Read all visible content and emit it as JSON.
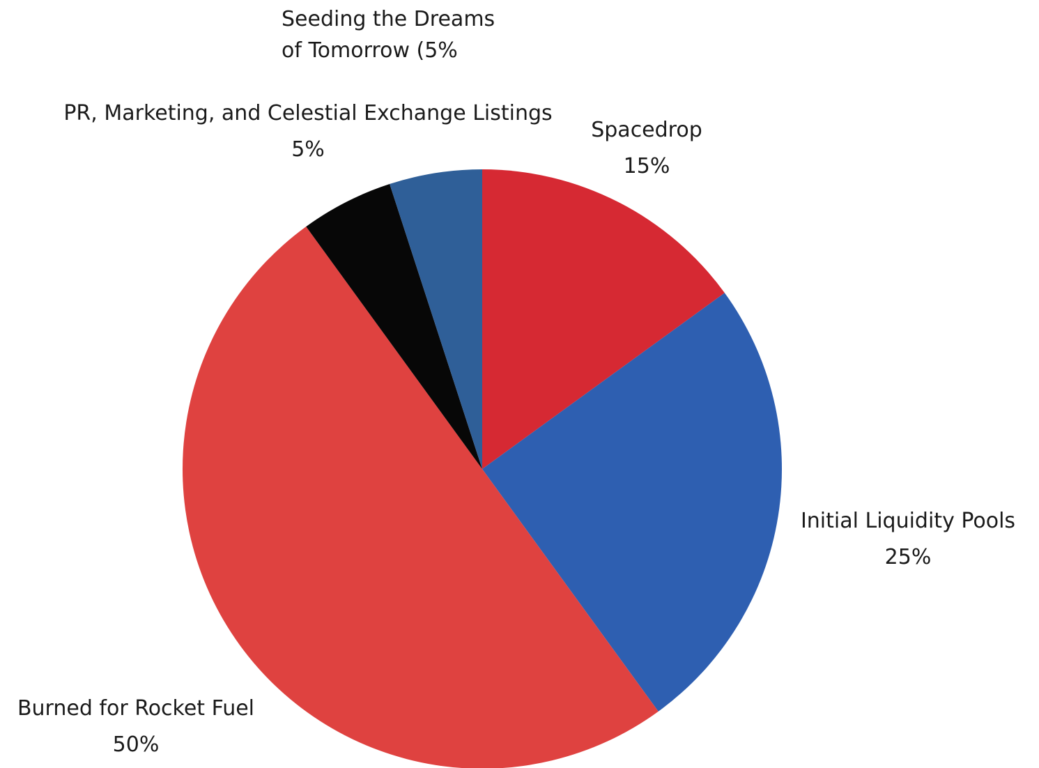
{
  "chart_data": {
    "type": "pie",
    "title": "",
    "start_angle_deg": 0,
    "direction": "clockwise",
    "legend": "none",
    "slices": [
      {
        "name": "Spacedrop",
        "value": 15,
        "value_label": "15%",
        "color": "#d62933"
      },
      {
        "name": "Initial Liquidity Pools",
        "value": 25,
        "value_label": "25%",
        "color": "#2e5fb1"
      },
      {
        "name": "Burned for Rocket Fuel",
        "value": 50,
        "value_label": "50%",
        "color": "#df4240"
      },
      {
        "name": "PR, Marketing, and Celestial Exchange Listings",
        "value": 5,
        "value_label": "5%",
        "color": "#070707"
      },
      {
        "name": "Seeding the Dreams of Tomorrow (5%",
        "name_lines": [
          "Seeding the Dreams",
          "of Tomorrow (5%"
        ],
        "value": 5,
        "value_label": "",
        "color": "#2f5f98"
      }
    ]
  }
}
